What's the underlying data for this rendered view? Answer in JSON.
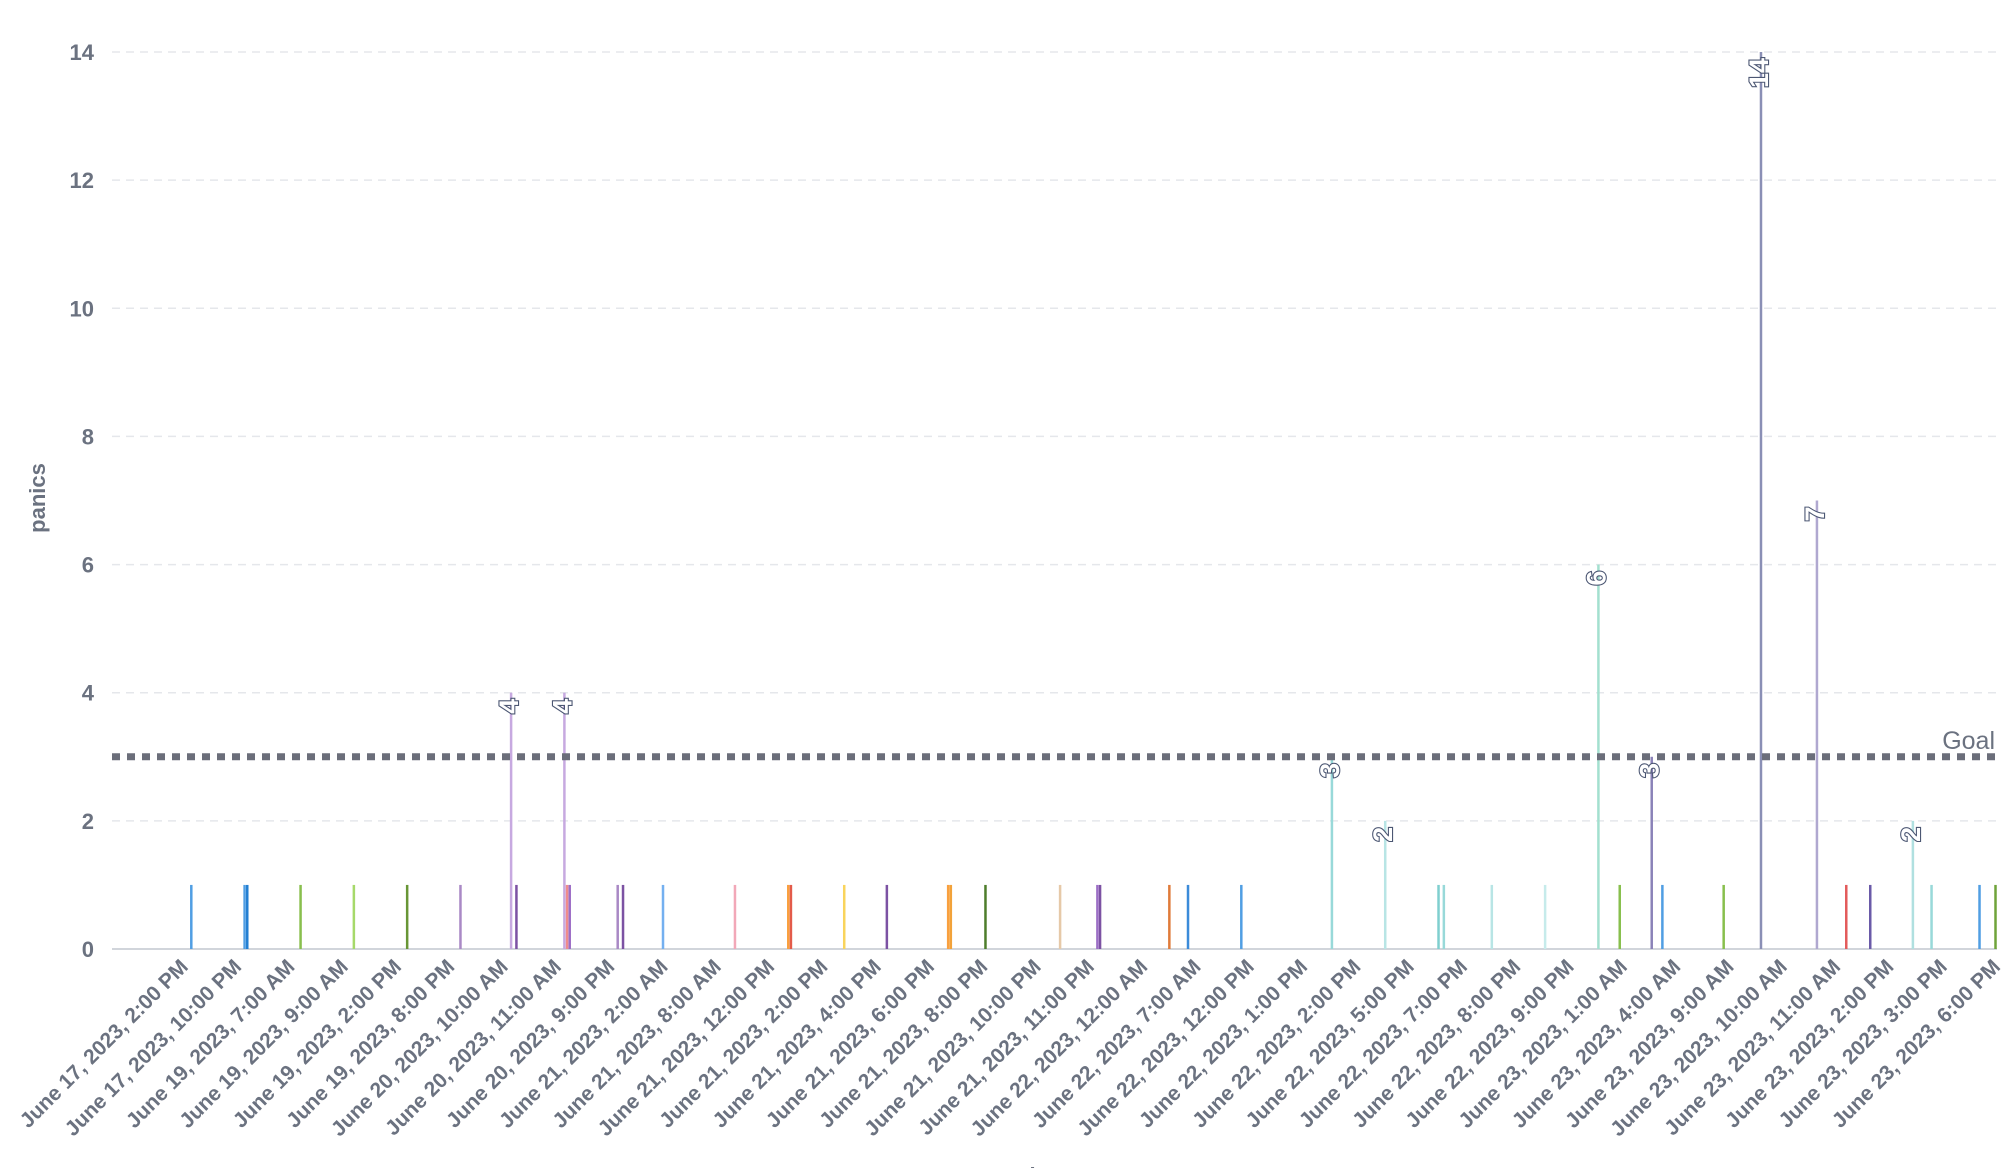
{
  "chart_data": {
    "type": "bar",
    "xlabel": "hour",
    "ylabel": "panics",
    "ylim": [
      0,
      14
    ],
    "yticks": [
      0,
      2,
      4,
      6,
      8,
      10,
      12,
      14
    ],
    "grid": true,
    "goal": {
      "label": "Goal",
      "value": 3
    },
    "tick_labels": [
      "June 17, 2023, 2:00 PM",
      "June 17, 2023, 10:00 PM",
      "June 19, 2023, 7:00 AM",
      "June 19, 2023, 9:00 AM",
      "June 19, 2023, 2:00 PM",
      "June 19, 2023, 8:00 PM",
      "June 20, 2023, 10:00 AM",
      "June 20, 2023, 11:00 AM",
      "June 20, 2023, 9:00 PM",
      "June 21, 2023, 2:00 AM",
      "June 21, 2023, 8:00 AM",
      "June 21, 2023, 12:00 PM",
      "June 21, 2023, 2:00 PM",
      "June 21, 2023, 4:00 PM",
      "June 21, 2023, 6:00 PM",
      "June 21, 2023, 8:00 PM",
      "June 21, 2023, 10:00 PM",
      "June 21, 2023, 11:00 PM",
      "June 22, 2023, 12:00 AM",
      "June 22, 2023, 7:00 AM",
      "June 22, 2023, 12:00 PM",
      "June 22, 2023, 1:00 PM",
      "June 22, 2023, 2:00 PM",
      "June 22, 2023, 5:00 PM",
      "June 22, 2023, 7:00 PM",
      "June 22, 2023, 8:00 PM",
      "June 22, 2023, 9:00 PM",
      "June 23, 2023, 1:00 AM",
      "June 23, 2023, 4:00 AM",
      "June 23, 2023, 9:00 AM",
      "June 23, 2023, 10:00 AM",
      "June 23, 2023, 11:00 AM",
      "June 23, 2023, 2:00 PM",
      "June 23, 2023, 3:00 PM",
      "June 23, 2023, 6:00 PM"
    ],
    "bars": [
      {
        "x": 2.0,
        "value": 1,
        "color": "#509ee3"
      },
      {
        "x": 3.0,
        "value": 1,
        "color": "#509ee3"
      },
      {
        "x": 3.05,
        "value": 1,
        "color": "#227fd2"
      },
      {
        "x": 4.05,
        "value": 1,
        "color": "#88bf4d"
      },
      {
        "x": 5.05,
        "value": 1,
        "color": "#a6d96a"
      },
      {
        "x": 6.05,
        "value": 1,
        "color": "#689636"
      },
      {
        "x": 7.05,
        "value": 1,
        "color": "#a989c5"
      },
      {
        "x": 8.0,
        "value": 4,
        "color": "#c7a9e0",
        "label": "4"
      },
      {
        "x": 8.1,
        "value": 1,
        "color": "#7c52a3"
      },
      {
        "x": 9.0,
        "value": 4,
        "color": "#c7a9e0",
        "label": "4"
      },
      {
        "x": 9.05,
        "value": 1,
        "color": "#ef8c8c"
      },
      {
        "x": 9.1,
        "value": 1,
        "color": "#9c6ec6"
      },
      {
        "x": 10.0,
        "value": 1,
        "color": "#a989c5"
      },
      {
        "x": 10.1,
        "value": 1,
        "color": "#7c52a3"
      },
      {
        "x": 10.85,
        "value": 1,
        "color": "#74b0f0"
      },
      {
        "x": 12.2,
        "value": 1,
        "color": "#f2a8b8"
      },
      {
        "x": 13.2,
        "value": 1,
        "color": "#f9a03f"
      },
      {
        "x": 13.25,
        "value": 1,
        "color": "#e35b4a"
      },
      {
        "x": 14.25,
        "value": 1,
        "color": "#f9d45c"
      },
      {
        "x": 15.05,
        "value": 1,
        "color": "#7c52a3"
      },
      {
        "x": 16.2,
        "value": 1,
        "color": "#f9a03f"
      },
      {
        "x": 16.25,
        "value": 1,
        "color": "#f2a23a"
      },
      {
        "x": 16.9,
        "value": 1,
        "color": "#4e7d2b"
      },
      {
        "x": 18.3,
        "value": 1,
        "color": "#e6c9a8"
      },
      {
        "x": 19.0,
        "value": 1,
        "color": "#9c6ec6"
      },
      {
        "x": 19.05,
        "value": 1,
        "color": "#7c52a3"
      },
      {
        "x": 20.35,
        "value": 1,
        "color": "#e07b3a"
      },
      {
        "x": 20.7,
        "value": 1,
        "color": "#3b8bd9"
      },
      {
        "x": 21.7,
        "value": 1,
        "color": "#509ee3"
      },
      {
        "x": 23.4,
        "value": 3,
        "color": "#98d9d9",
        "label": "3"
      },
      {
        "x": 24.4,
        "value": 2,
        "color": "#b8e5e5",
        "label": "2"
      },
      {
        "x": 25.4,
        "value": 1,
        "color": "#7fcfcf"
      },
      {
        "x": 25.5,
        "value": 1,
        "color": "#98d9d9"
      },
      {
        "x": 26.4,
        "value": 1,
        "color": "#b8e5e5"
      },
      {
        "x": 27.4,
        "value": 1,
        "color": "#c6ebeb"
      },
      {
        "x": 28.4,
        "value": 6,
        "color": "#a3e0cf",
        "label": "6"
      },
      {
        "x": 28.8,
        "value": 1,
        "color": "#88bf4d"
      },
      {
        "x": 29.4,
        "value": 3,
        "color": "#8a82b8",
        "label": "3"
      },
      {
        "x": 29.6,
        "value": 1,
        "color": "#509ee3"
      },
      {
        "x": 30.75,
        "value": 1,
        "color": "#88bf4d"
      },
      {
        "x": 31.45,
        "value": 14,
        "color": "#8a8fb5",
        "label": "14"
      },
      {
        "x": 32.5,
        "value": 7,
        "color": "#b0a8d0",
        "label": "7"
      },
      {
        "x": 33.05,
        "value": 1,
        "color": "#e35b5b"
      },
      {
        "x": 33.5,
        "value": 1,
        "color": "#6a5aa8"
      },
      {
        "x": 34.3,
        "value": 2,
        "color": "#b0e0e0",
        "label": "2"
      },
      {
        "x": 34.65,
        "value": 1,
        "color": "#98d9d9"
      },
      {
        "x": 35.55,
        "value": 1,
        "color": "#509ee3"
      },
      {
        "x": 35.85,
        "value": 1,
        "color": "#6fa33a"
      }
    ]
  }
}
